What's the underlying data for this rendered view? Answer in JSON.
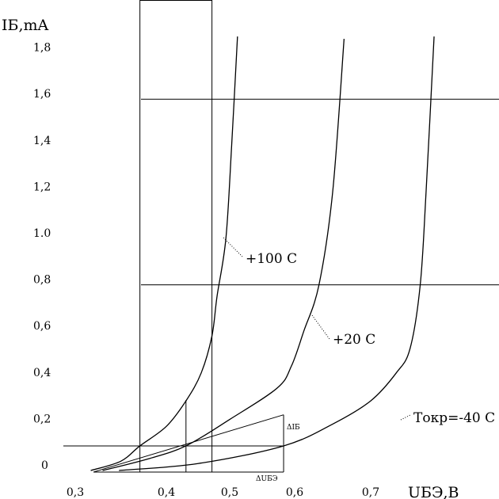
{
  "chart_data": {
    "type": "line",
    "title": "",
    "xlabel": "UБЭ,В",
    "ylabel": "IБ,mA",
    "x_ticks": [
      {
        "value": 0.3,
        "label": "0,3"
      },
      {
        "value": 0.4,
        "label": "0,4"
      },
      {
        "value": 0.5,
        "label": "0,5"
      },
      {
        "value": 0.6,
        "label": "0,6"
      },
      {
        "value": 0.7,
        "label": "0,7"
      }
    ],
    "y_ticks": [
      {
        "value": 0,
        "label": "0"
      },
      {
        "value": 0.2,
        "label": "0,2"
      },
      {
        "value": 0.4,
        "label": "0,4"
      },
      {
        "value": 0.6,
        "label": "0,6"
      },
      {
        "value": 0.8,
        "label": "0,8"
      },
      {
        "value": 1.0,
        "label": "1.0"
      },
      {
        "value": 1.2,
        "label": "1,2"
      },
      {
        "value": 1.4,
        "label": "1,4"
      },
      {
        "value": 1.6,
        "label": "1,6"
      },
      {
        "value": 1.8,
        "label": "1,8"
      }
    ],
    "ylim": [
      0,
      1.9
    ],
    "xlim": [
      0.3,
      0.8
    ],
    "series": [
      {
        "name": "+100 C",
        "points": [
          [
            0.317,
            0
          ],
          [
            0.35,
            0.04
          ],
          [
            0.371,
            0.106
          ],
          [
            0.4,
            0.19
          ],
          [
            0.431,
            0.3
          ],
          [
            0.455,
            0.42
          ],
          [
            0.472,
            0.58
          ],
          [
            0.48,
            0.75
          ],
          [
            0.494,
            1.0
          ],
          [
            0.503,
            1.4
          ],
          [
            0.512,
            1.87
          ]
        ]
      },
      {
        "name": "+20 C",
        "points": [
          [
            0.33,
            0
          ],
          [
            0.38,
            0.05
          ],
          [
            0.431,
            0.106
          ],
          [
            0.5,
            0.22
          ],
          [
            0.573,
            0.355
          ],
          [
            0.595,
            0.45
          ],
          [
            0.612,
            0.6
          ],
          [
            0.632,
            0.8
          ],
          [
            0.65,
            1.2
          ],
          [
            0.665,
            1.86
          ]
        ]
      },
      {
        "name": "Tокр=-40 C",
        "points": [
          [
            0.348,
            0
          ],
          [
            0.45,
            0.03
          ],
          [
            0.583,
            0.106
          ],
          [
            0.65,
            0.2
          ],
          [
            0.7,
            0.3
          ],
          [
            0.735,
            0.42
          ],
          [
            0.754,
            0.525
          ],
          [
            0.768,
            0.8
          ],
          [
            0.776,
            1.2
          ],
          [
            0.787,
            1.87
          ]
        ]
      }
    ],
    "tangent": {
      "from": [
        0.32,
        0
      ],
      "to": [
        0.583,
        0.24
      ]
    },
    "h_gridlines": [
      1.6,
      0.8,
      0.106
    ],
    "v_gridlines": [
      0.371,
      0.472
    ],
    "construction": {
      "x_mid": 0.431,
      "x_right": 0.583,
      "y_top": 0.24
    },
    "annotations": {
      "delta_i": "ΔIБ",
      "delta_u": "ΔUБЭ"
    },
    "grid": false,
    "legend": "none"
  }
}
